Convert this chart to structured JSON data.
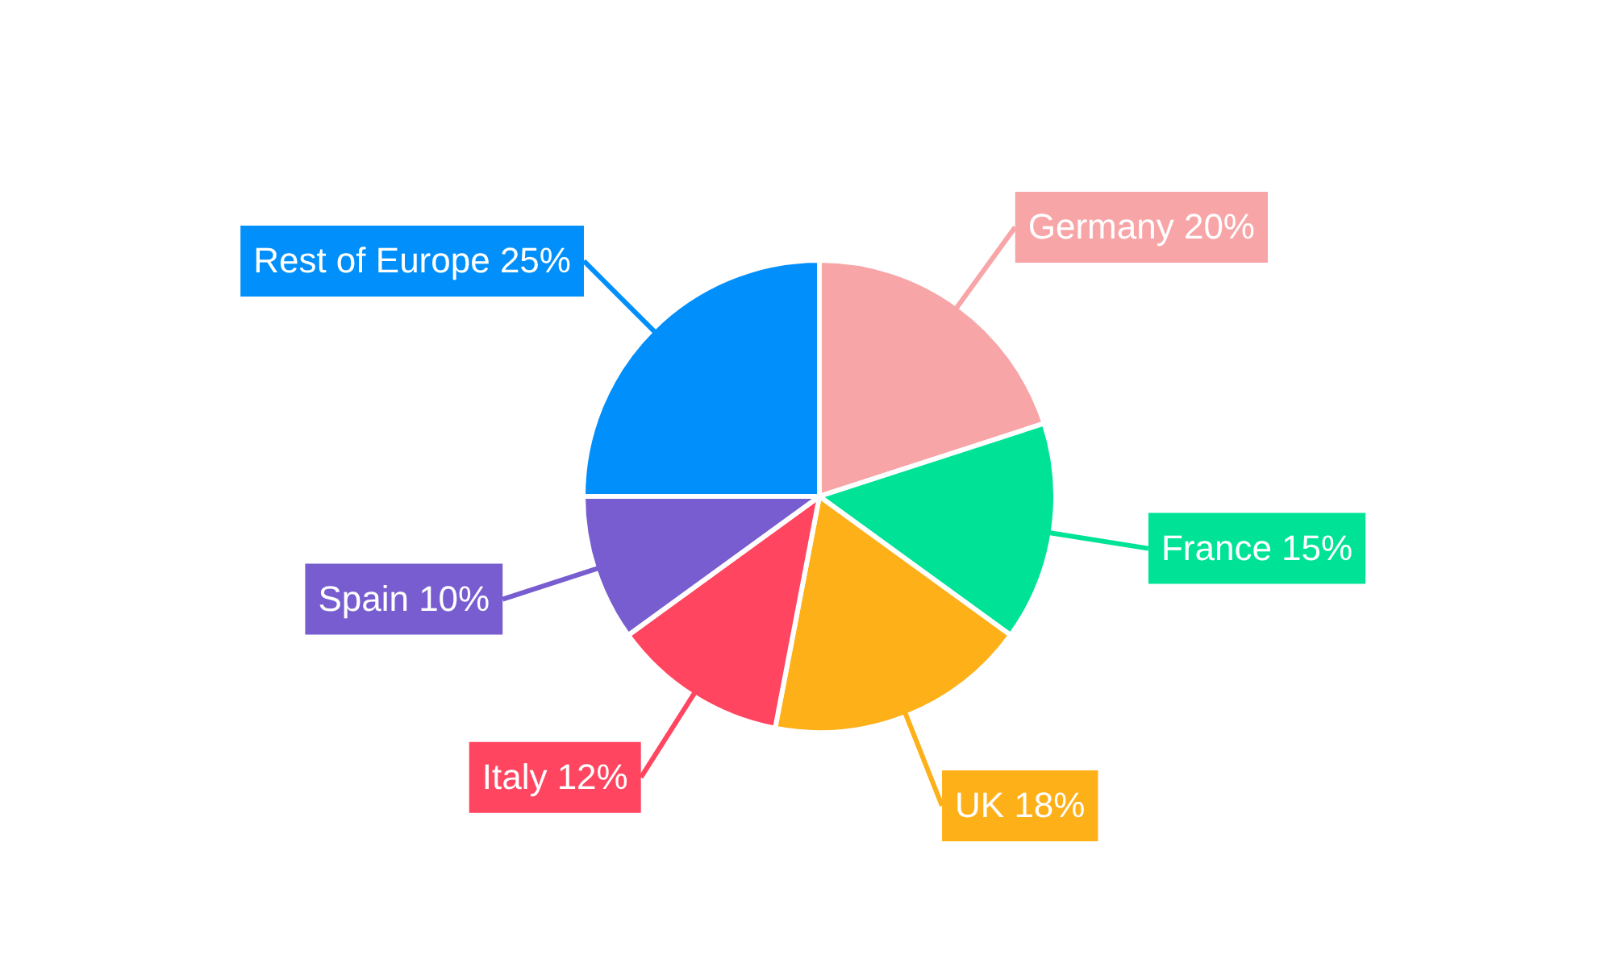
{
  "chart_data": {
    "type": "pie",
    "categories": [
      "Germany",
      "France",
      "UK",
      "Italy",
      "Spain",
      "Rest of Europe"
    ],
    "values": [
      20,
      15,
      18,
      12,
      10,
      25
    ],
    "value_labels": [
      "20%",
      "15%",
      "18%",
      "12%",
      "10%",
      "25%"
    ],
    "colors": [
      "#f8a5a8",
      "#00e396",
      "#feb019",
      "#ff4560",
      "#775dd0",
      "#008ffb"
    ],
    "legend": false
  }
}
